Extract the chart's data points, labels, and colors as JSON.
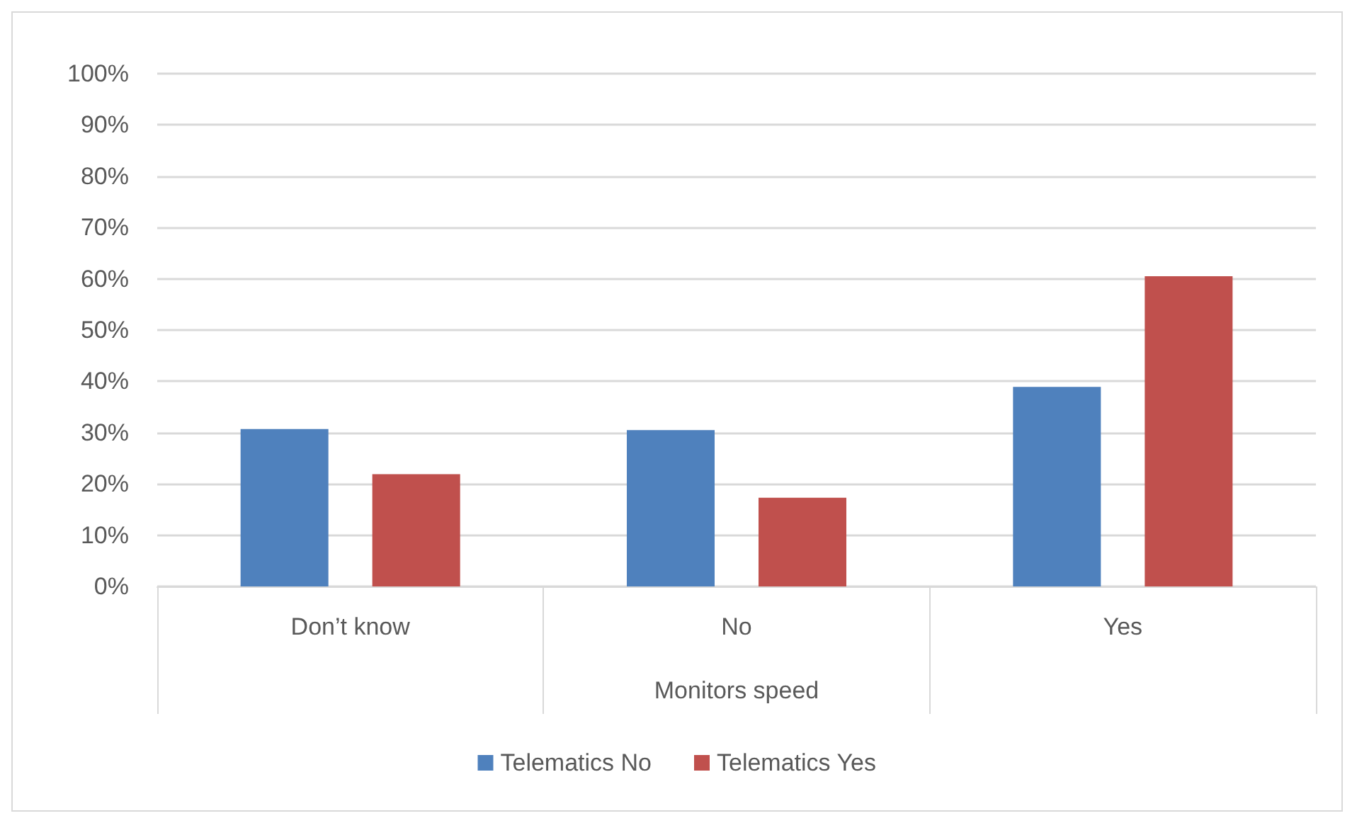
{
  "chart_data": {
    "type": "bar",
    "xlabel": "Monitors speed",
    "categories": [
      "Don’t know",
      "No",
      "Yes"
    ],
    "series": [
      {
        "name": "Telematics No",
        "color": "#4f81bd",
        "values": [
          30.7,
          30.5,
          38.9
        ]
      },
      {
        "name": "Telematics Yes",
        "color": "#c0504d",
        "values": [
          21.9,
          17.3,
          60.5
        ]
      }
    ],
    "ylim": [
      0,
      100
    ],
    "yticks": [
      {
        "value": 0,
        "label": "0%"
      },
      {
        "value": 10,
        "label": "10%"
      },
      {
        "value": 20,
        "label": "20%"
      },
      {
        "value": 30,
        "label": "30%"
      },
      {
        "value": 40,
        "label": "40%"
      },
      {
        "value": 50,
        "label": "50%"
      },
      {
        "value": 60,
        "label": "60%"
      },
      {
        "value": 70,
        "label": "70%"
      },
      {
        "value": 80,
        "label": "80%"
      },
      {
        "value": 90,
        "label": "90%"
      },
      {
        "value": 100,
        "label": "100%"
      }
    ],
    "grid": "y",
    "legend": "bottom"
  }
}
